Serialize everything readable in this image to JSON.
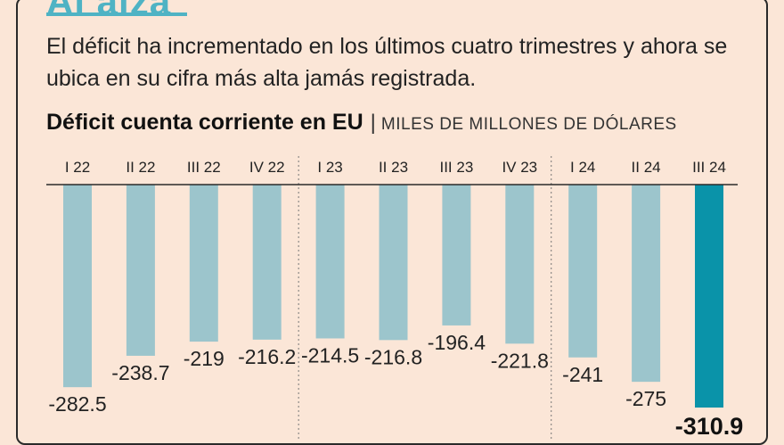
{
  "header": {
    "title": "Al alza",
    "subtitle": "El déficit ha incrementado en los últimos cuatro trimestres y ahora se ubica en su cifra más alta jamás registrada."
  },
  "chart_data": {
    "type": "bar",
    "title": "Déficit cuenta corriente en EU",
    "separator": "|",
    "unit": "MILES DE MILLONES DE DÓLARES",
    "categories": [
      "I 22",
      "II 22",
      "III 22",
      "IV 22",
      "I 23",
      "II 23",
      "III 23",
      "IV 23",
      "I 24",
      "II 24",
      "III 24"
    ],
    "values": [
      -282.5,
      -238.7,
      -219,
      -216.2,
      -214.5,
      -216.8,
      -196.4,
      -221.8,
      -241,
      -275,
      -310.9
    ],
    "value_labels": [
      "-282.5",
      "-238.7",
      "-219",
      "-216.2",
      "-214.5",
      "-216.8",
      "-196.4",
      "-221.8",
      "-241",
      "-275",
      "-310.9"
    ],
    "highlight_index": 10,
    "ylim": [
      -310.9,
      0
    ],
    "colors": {
      "bar": "#9cc5cc",
      "highlight": "#0a93a9",
      "axis": "#2a2a2a",
      "divider": "#777777"
    }
  }
}
